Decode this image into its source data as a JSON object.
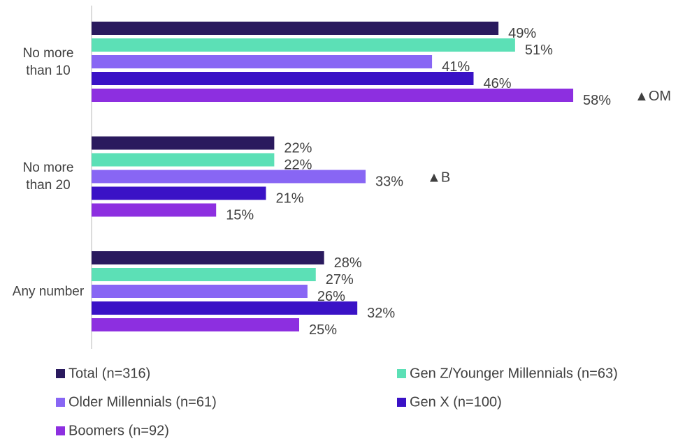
{
  "chart_data": {
    "type": "bar",
    "orientation": "horizontal",
    "categories": [
      "No more than 10",
      "No more than 20",
      "Any number"
    ],
    "series": [
      {
        "name": "Total (n=316)",
        "color": "#2a1a5e",
        "values": [
          49,
          22,
          28
        ],
        "value_labels": [
          "49%",
          "22%",
          "28%"
        ]
      },
      {
        "name": "Gen Z/Younger Millennials (n=63)",
        "color": "#5ce0b6",
        "values": [
          51,
          22,
          27
        ],
        "value_labels": [
          "51%",
          "22%",
          "27%"
        ]
      },
      {
        "name": "Older Millennials (n=61)",
        "color": "#8866f4",
        "values": [
          41,
          33,
          26
        ],
        "value_labels": [
          "41%",
          "33%",
          "26%"
        ]
      },
      {
        "name": "Gen X (n=100)",
        "color": "#3a12c6",
        "values": [
          46,
          21,
          32
        ],
        "value_labels": [
          "46%",
          "21%",
          "32%"
        ]
      },
      {
        "name": "Boomers (n=92)",
        "color": "#8d2fe0",
        "values": [
          58,
          15,
          25
        ],
        "value_labels": [
          "58%",
          "15%",
          "25%"
        ]
      }
    ],
    "annotations": [
      {
        "text": "▲OM",
        "series": 4,
        "category": 0
      },
      {
        "text": "▲B",
        "series": 2,
        "category": 1
      }
    ],
    "legend": "bottom"
  }
}
